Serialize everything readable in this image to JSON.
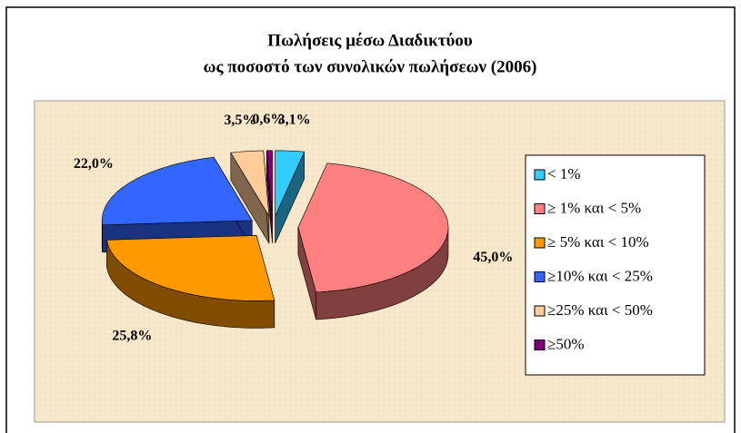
{
  "chart_data": {
    "type": "pie",
    "title": "Πωλήσεις μέσω Διαδικτύου",
    "subtitle": "ως ποσοστό των συνολικών πωλήσεων  (2006)",
    "categories": [
      "< 1%",
      "≥ 1% και <  5%",
      "≥ 5% και < 10%",
      "≥10% και < 25%",
      "≥25% και < 50%",
      "≥50%"
    ],
    "values": [
      3.1,
      45.0,
      25.8,
      22.0,
      3.5,
      0.6
    ],
    "value_labels": [
      "3,1%",
      "45,0%",
      "25,8%",
      "22,0%",
      "3,5%",
      "0,6%"
    ],
    "colors": [
      "#33ccff",
      "#ff8080",
      "#ff9900",
      "#3366ff",
      "#ffcc99",
      "#800080"
    ],
    "legend": "right"
  }
}
